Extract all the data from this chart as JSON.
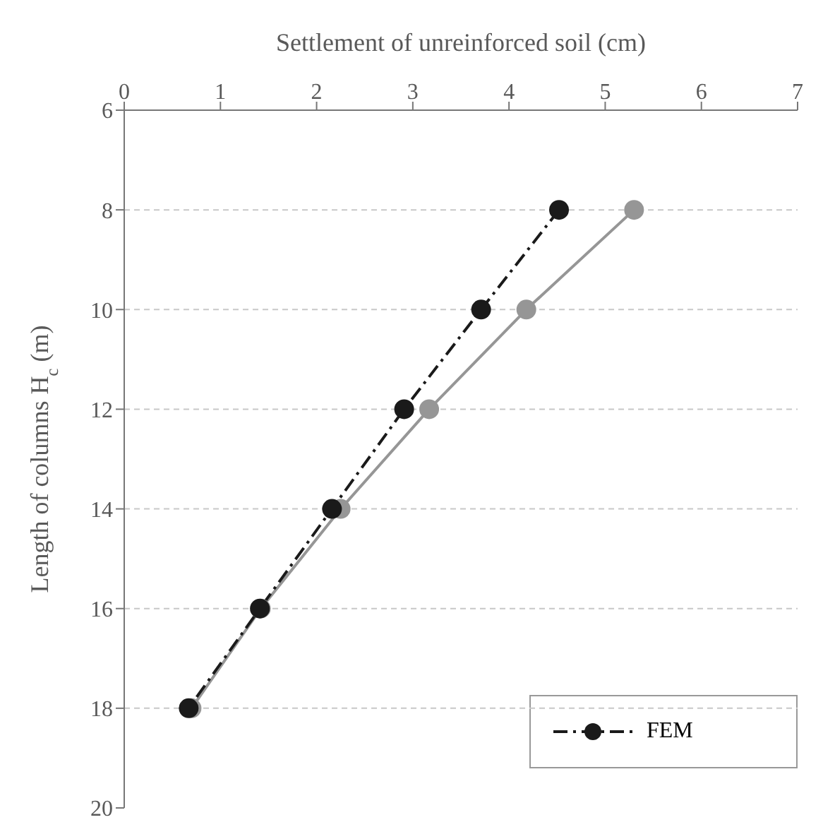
{
  "chart_data": {
    "type": "line",
    "xlabel": "Settlement of unreinforced soil (cm)",
    "ylabel": "Length of columns H$_{c}$ (m)",
    "xlim": [
      0,
      7
    ],
    "xticks": [
      0,
      1,
      2,
      3,
      4,
      5,
      6,
      7
    ],
    "ylim": [
      20,
      6
    ],
    "yticks": [
      6,
      8,
      10,
      12,
      14,
      16,
      18,
      20
    ],
    "grid": "y",
    "legend": "bottom right",
    "marker": "circle",
    "series": [
      {
        "color": "#969696",
        "line_style": "solid",
        "x": [
          5.3,
          4.18,
          3.17,
          2.25,
          1.42,
          0.7
        ],
        "values": [
          8,
          10,
          12,
          14,
          16,
          18
        ]
      },
      {
        "name": "FEM",
        "color": "#1a1a1a",
        "line_style": "dashed",
        "x": [
          4.52,
          3.71,
          2.91,
          2.16,
          1.41,
          0.67
        ],
        "values": [
          8,
          10,
          12,
          14,
          16,
          18
        ]
      }
    ]
  }
}
